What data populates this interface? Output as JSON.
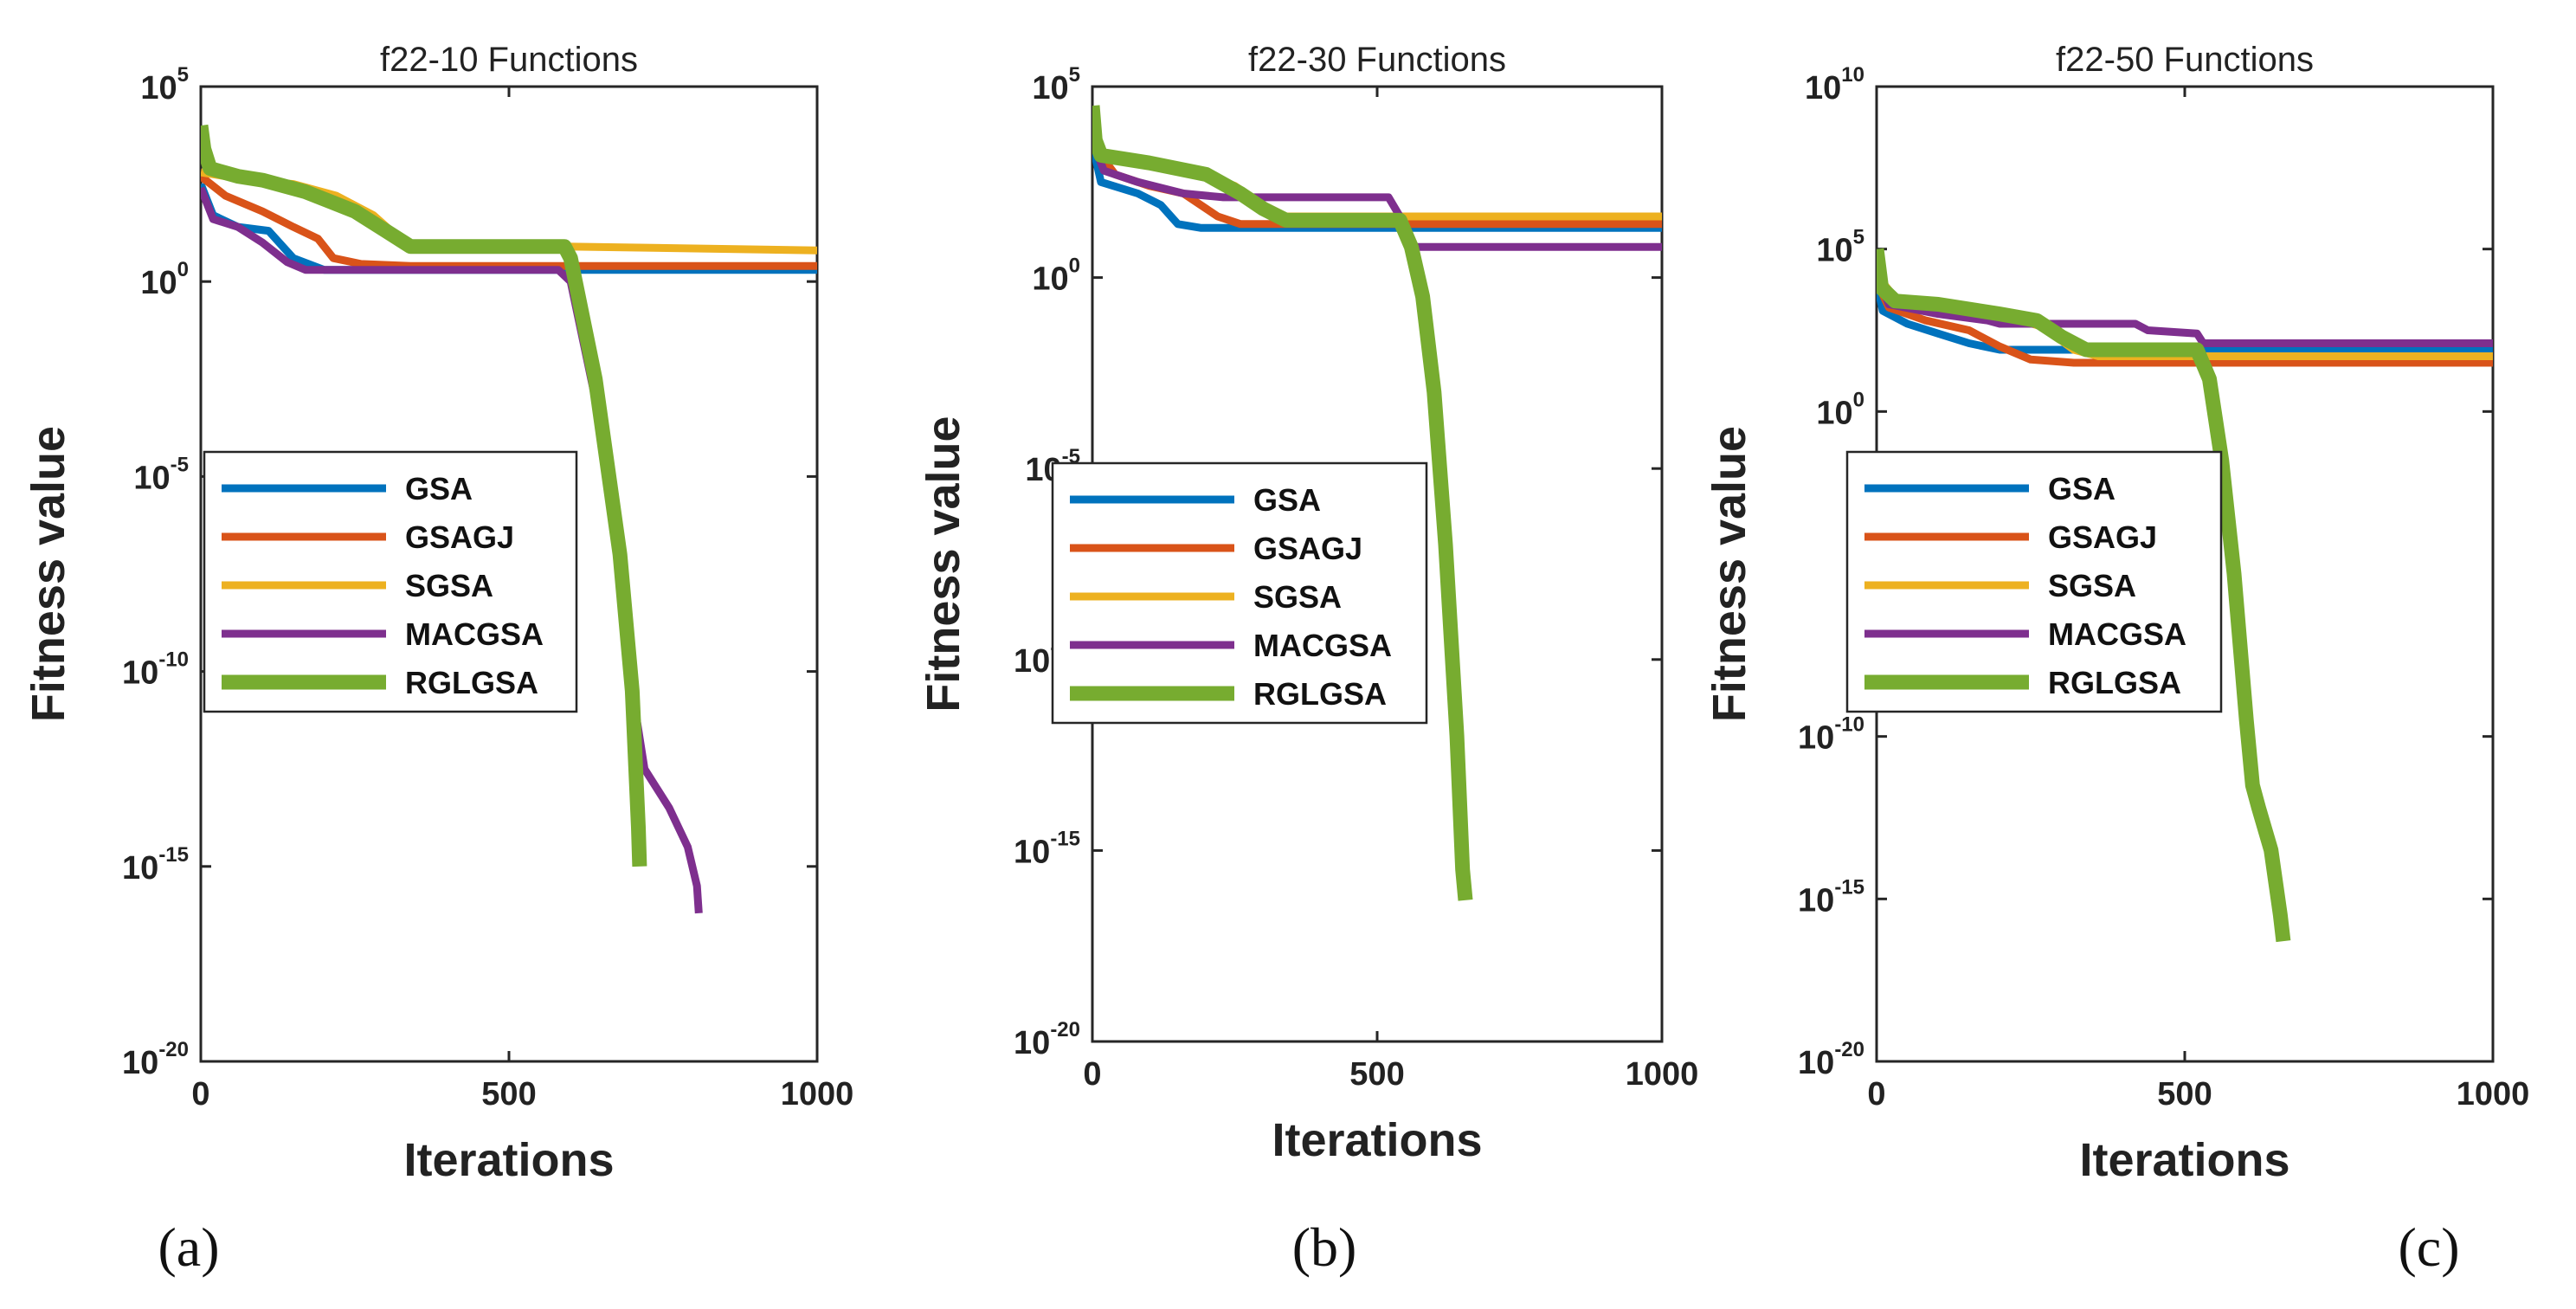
{
  "figure": {
    "panel_labels": [
      "(a)",
      "(b)",
      "(c)"
    ]
  },
  "colors": {
    "GSA": "#0072BD",
    "GSAGJ": "#D95319",
    "SGSA": "#EDB120",
    "MACGSA": "#7E2F8E",
    "RGLGSA": "#77AC30"
  },
  "chart_data": [
    {
      "type": "line",
      "title": "f22-10 Functions",
      "xlabel": "Iterations",
      "ylabel": "Fitness value",
      "xscale": "linear",
      "yscale": "log",
      "xlim": [
        0,
        1000
      ],
      "ylim_exp": [
        -20,
        5
      ],
      "xticks": [
        0,
        500,
        1000
      ],
      "yticks_exp": [
        -20,
        -15,
        -10,
        -5,
        0,
        5
      ],
      "legend_position": "center-left",
      "series": [
        {
          "name": "GSA",
          "points": [
            [
              0,
              2.5
            ],
            [
              20,
              1.7
            ],
            [
              60,
              1.4
            ],
            [
              110,
              1.3
            ],
            [
              150,
              0.6
            ],
            [
              200,
              0.3
            ],
            [
              350,
              0.3
            ],
            [
              1000,
              0.3
            ]
          ]
        },
        {
          "name": "GSAGJ",
          "points": [
            [
              0,
              2.7
            ],
            [
              40,
              2.2
            ],
            [
              100,
              1.8
            ],
            [
              150,
              1.4
            ],
            [
              190,
              1.1
            ],
            [
              215,
              0.6
            ],
            [
              260,
              0.45
            ],
            [
              340,
              0.4
            ],
            [
              1000,
              0.4
            ]
          ]
        },
        {
          "name": "SGSA",
          "points": [
            [
              0,
              2.8
            ],
            [
              80,
              2.6
            ],
            [
              150,
              2.5
            ],
            [
              220,
              2.2
            ],
            [
              280,
              1.7
            ],
            [
              330,
              1.0
            ],
            [
              360,
              0.9
            ],
            [
              590,
              0.9
            ],
            [
              1000,
              0.8
            ]
          ]
        },
        {
          "name": "MACGSA",
          "points": [
            [
              0,
              2.4
            ],
            [
              20,
              1.6
            ],
            [
              60,
              1.4
            ],
            [
              100,
              1.0
            ],
            [
              140,
              0.5
            ],
            [
              170,
              0.3
            ],
            [
              580,
              0.3
            ],
            [
              600,
              0.0
            ],
            [
              640,
              -3.0
            ],
            [
              680,
              -7.5
            ],
            [
              700,
              -10.5
            ],
            [
              720,
              -12.5
            ],
            [
              760,
              -13.5
            ],
            [
              790,
              -14.5
            ],
            [
              805,
              -15.5
            ],
            [
              808,
              -16.2
            ]
          ]
        },
        {
          "name": "RGLGSA",
          "points": [
            [
              0,
              4.0
            ],
            [
              5,
              3.4
            ],
            [
              15,
              2.9
            ],
            [
              60,
              2.7
            ],
            [
              100,
              2.6
            ],
            [
              170,
              2.3
            ],
            [
              250,
              1.8
            ],
            [
              300,
              1.3
            ],
            [
              340,
              0.9
            ],
            [
              360,
              0.9
            ],
            [
              590,
              0.9
            ],
            [
              600,
              0.6
            ],
            [
              640,
              -2.5
            ],
            [
              680,
              -7.0
            ],
            [
              700,
              -10.5
            ],
            [
              710,
              -14.0
            ],
            [
              712,
              -15.0
            ]
          ]
        }
      ]
    },
    {
      "type": "line",
      "title": "f22-30 Functions",
      "xlabel": "Iterations",
      "ylabel": "Fitness value",
      "xscale": "linear",
      "yscale": "log",
      "xlim": [
        0,
        1000
      ],
      "ylim_exp": [
        -20,
        5
      ],
      "xticks": [
        0,
        500,
        1000
      ],
      "yticks_exp": [
        -20,
        -15,
        -10,
        -5,
        0,
        5
      ],
      "legend_position": "center-left",
      "series": [
        {
          "name": "GSA",
          "points": [
            [
              0,
              3.5
            ],
            [
              15,
              2.5
            ],
            [
              80,
              2.2
            ],
            [
              120,
              1.9
            ],
            [
              150,
              1.4
            ],
            [
              190,
              1.3
            ],
            [
              350,
              1.3
            ],
            [
              1000,
              1.3
            ]
          ]
        },
        {
          "name": "GSAGJ",
          "points": [
            [
              0,
              3.5
            ],
            [
              40,
              2.7
            ],
            [
              100,
              2.4
            ],
            [
              160,
              2.2
            ],
            [
              220,
              1.6
            ],
            [
              260,
              1.4
            ],
            [
              350,
              1.4
            ],
            [
              1000,
              1.4
            ]
          ]
        },
        {
          "name": "SGSA",
          "points": [
            [
              0,
              3.9
            ],
            [
              15,
              3.2
            ],
            [
              100,
              3.0
            ],
            [
              180,
              2.8
            ],
            [
              250,
              2.4
            ],
            [
              300,
              1.9
            ],
            [
              340,
              1.6
            ],
            [
              1000,
              1.6
            ]
          ]
        },
        {
          "name": "MACGSA",
          "points": [
            [
              0,
              3.6
            ],
            [
              20,
              2.8
            ],
            [
              80,
              2.5
            ],
            [
              160,
              2.2
            ],
            [
              230,
              2.1
            ],
            [
              520,
              2.1
            ],
            [
              540,
              1.6
            ],
            [
              560,
              0.8
            ],
            [
              1000,
              0.8
            ]
          ]
        },
        {
          "name": "RGLGSA",
          "points": [
            [
              0,
              4.5
            ],
            [
              5,
              3.6
            ],
            [
              15,
              3.2
            ],
            [
              100,
              3.0
            ],
            [
              200,
              2.7
            ],
            [
              260,
              2.2
            ],
            [
              300,
              1.8
            ],
            [
              340,
              1.5
            ],
            [
              540,
              1.5
            ],
            [
              560,
              0.8
            ],
            [
              580,
              -0.5
            ],
            [
              600,
              -3.0
            ],
            [
              620,
              -7.0
            ],
            [
              640,
              -12.0
            ],
            [
              650,
              -15.5
            ],
            [
              655,
              -16.3
            ]
          ]
        }
      ]
    },
    {
      "type": "line",
      "title": "f22-50 Functions",
      "xlabel": "Iterations",
      "ylabel": "Fitness value",
      "xscale": "linear",
      "yscale": "log",
      "xlim": [
        0,
        1000
      ],
      "ylim_exp": [
        -20,
        10
      ],
      "xticks": [
        0,
        500,
        1000
      ],
      "yticks_exp": [
        -20,
        -15,
        -10,
        0,
        5,
        10
      ],
      "legend_position": "center-left",
      "series": [
        {
          "name": "GSA",
          "points": [
            [
              0,
              4.0
            ],
            [
              10,
              3.1
            ],
            [
              50,
              2.7
            ],
            [
              100,
              2.4
            ],
            [
              150,
              2.1
            ],
            [
              200,
              1.9
            ],
            [
              350,
              1.9
            ],
            [
              1000,
              1.9
            ]
          ]
        },
        {
          "name": "GSAGJ",
          "points": [
            [
              0,
              4.0
            ],
            [
              20,
              3.2
            ],
            [
              80,
              2.8
            ],
            [
              150,
              2.5
            ],
            [
              200,
              2.0
            ],
            [
              250,
              1.6
            ],
            [
              320,
              1.5
            ],
            [
              1000,
              1.5
            ]
          ]
        },
        {
          "name": "SGSA",
          "points": [
            [
              0,
              4.2
            ],
            [
              30,
              3.5
            ],
            [
              120,
              3.3
            ],
            [
              200,
              3.0
            ],
            [
              270,
              2.6
            ],
            [
              320,
              1.9
            ],
            [
              360,
              1.7
            ],
            [
              1000,
              1.7
            ]
          ]
        },
        {
          "name": "MACGSA",
          "points": [
            [
              0,
              4.2
            ],
            [
              20,
              3.3
            ],
            [
              100,
              3.0
            ],
            [
              180,
              2.8
            ],
            [
              200,
              2.7
            ],
            [
              420,
              2.7
            ],
            [
              440,
              2.5
            ],
            [
              520,
              2.4
            ],
            [
              530,
              2.1
            ],
            [
              1000,
              2.1
            ]
          ]
        },
        {
          "name": "RGLGSA",
          "points": [
            [
              0,
              5.0
            ],
            [
              8,
              3.8
            ],
            [
              30,
              3.4
            ],
            [
              100,
              3.3
            ],
            [
              200,
              3.0
            ],
            [
              260,
              2.8
            ],
            [
              300,
              2.3
            ],
            [
              340,
              1.9
            ],
            [
              520,
              1.9
            ],
            [
              540,
              1.0
            ],
            [
              560,
              -1.5
            ],
            [
              580,
              -5.0
            ],
            [
              600,
              -9.5
            ],
            [
              610,
              -11.5
            ],
            [
              620,
              -12.2
            ],
            [
              640,
              -13.5
            ],
            [
              655,
              -15.5
            ],
            [
              660,
              -16.3
            ]
          ]
        }
      ]
    }
  ]
}
